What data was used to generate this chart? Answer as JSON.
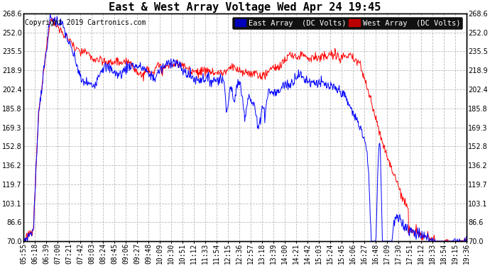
{
  "title": "East & West Array Voltage Wed Apr 24 19:45",
  "copyright": "Copyright 2019 Cartronics.com",
  "legend_east": "East Array  (DC Volts)",
  "legend_west": "West Array  (DC Volts)",
  "east_color": "#0000ff",
  "west_color": "#ff0000",
  "legend_east_bg": "#0000bb",
  "legend_west_bg": "#bb0000",
  "background_color": "#ffffff",
  "plot_bg": "#ffffff",
  "grid_color": "#bbbbbb",
  "ylim": [
    70.0,
    268.6
  ],
  "yticks": [
    70.0,
    86.6,
    103.1,
    119.7,
    136.2,
    152.8,
    169.3,
    185.8,
    202.4,
    218.9,
    235.5,
    252.0,
    268.6
  ],
  "xtick_labels": [
    "05:55",
    "06:18",
    "06:39",
    "07:00",
    "07:21",
    "07:42",
    "08:03",
    "08:24",
    "08:45",
    "09:06",
    "09:27",
    "09:48",
    "10:09",
    "10:30",
    "10:51",
    "11:12",
    "11:33",
    "11:54",
    "12:15",
    "12:36",
    "12:57",
    "13:18",
    "13:39",
    "14:00",
    "14:21",
    "14:42",
    "15:03",
    "15:24",
    "15:45",
    "16:06",
    "16:27",
    "16:48",
    "17:09",
    "17:30",
    "17:51",
    "18:12",
    "18:33",
    "18:54",
    "19:15",
    "19:36"
  ],
  "title_fontsize": 11,
  "tick_fontsize": 7,
  "copyright_fontsize": 7,
  "legend_fontsize": 7.5
}
